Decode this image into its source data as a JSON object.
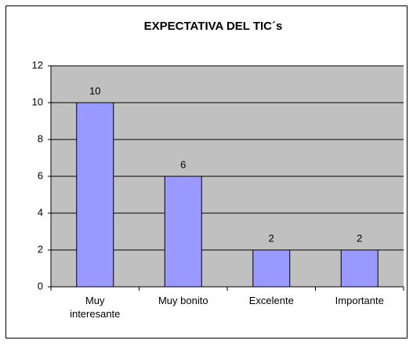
{
  "chart_data": {
    "type": "bar",
    "title": "EXPECTATIVA DEL TIC´s",
    "categories": [
      "Muy interesante",
      "Muy bonito",
      "Excelente",
      "Importante"
    ],
    "values": [
      10,
      6,
      2,
      2
    ],
    "color": "#9999ff",
    "ylim": [
      0,
      12
    ],
    "yticks": [
      0,
      2,
      4,
      6,
      8,
      10,
      12
    ],
    "grid": true
  }
}
